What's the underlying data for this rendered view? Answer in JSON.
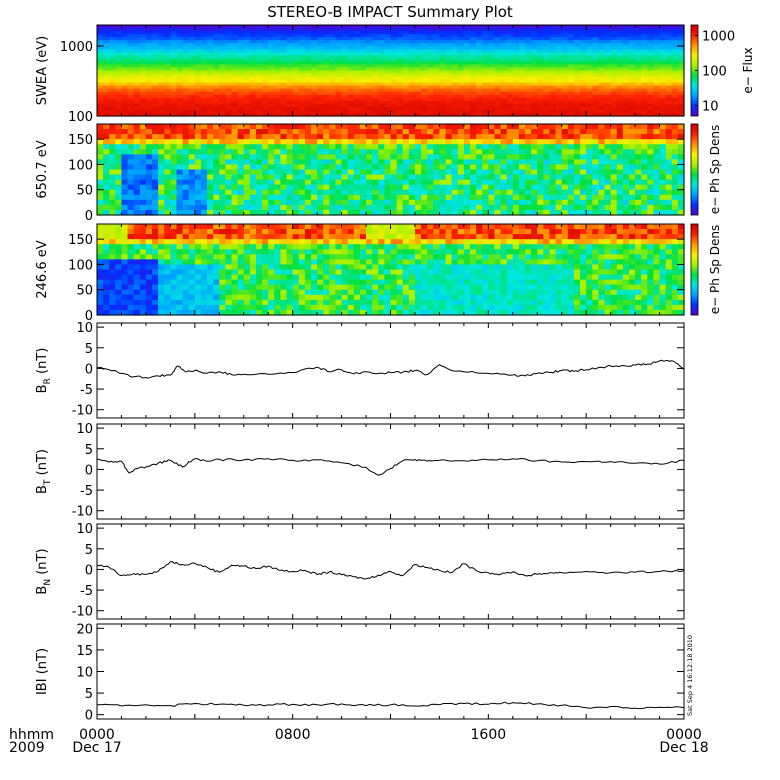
{
  "title": "STEREO-B IMPACT Summary Plot",
  "footer": {
    "time_label": "hhmm",
    "year_label": "2009",
    "stamp": "Sat Sep  4 16:12:18 2010"
  },
  "colors": {
    "colormap": [
      "#5a00c8",
      "#0030ff",
      "#00a0ff",
      "#00e8e0",
      "#00e040",
      "#a8f000",
      "#f8f000",
      "#ff9000",
      "#ff2000",
      "#c80000"
    ],
    "line": "#000000"
  },
  "chart_data": [
    {
      "type": "heatmap",
      "ylabel": "SWEA (eV)",
      "yscale": "log",
      "ylim": [
        100,
        2000
      ],
      "yticks": [
        "1000",
        "100"
      ],
      "colorbar": {
        "label": "e− Flux",
        "scale": "log",
        "ticks": [
          "1000",
          "100",
          "10"
        ]
      },
      "description_rows_low_to_high_energy": "flux highest at low energy (red), falling to blue above ~1500 eV",
      "energy_levels_eV": [
        100,
        150,
        200,
        300,
        450,
        600,
        900,
        1300,
        2000
      ],
      "flux_by_energy": [
        1500,
        1300,
        900,
        300,
        120,
        60,
        25,
        12,
        5
      ]
    },
    {
      "type": "heatmap",
      "ylabel": "650.7  eV",
      "ylim": [
        0,
        180
      ],
      "yticks": [
        "150",
        "100",
        "50",
        "0"
      ],
      "colorbar": {
        "label": "e− Ph Sp Dens"
      }
    },
    {
      "type": "heatmap",
      "ylabel": "246.6  eV",
      "ylim": [
        0,
        180
      ],
      "yticks": [
        "150",
        "100",
        "50",
        "0"
      ],
      "colorbar": {
        "label": "e− Ph Sp Dens"
      }
    },
    {
      "type": "line",
      "ylabel_main": "B",
      "ylabel_sub": "R",
      "ylabel_unit": " (nT)",
      "ylim": [
        -12,
        11
      ],
      "yticks": [
        "10",
        "5",
        "0",
        "-5",
        "-10"
      ],
      "x_hours": [
        0,
        0.5,
        1,
        1.5,
        2,
        2.5,
        3,
        3.3,
        3.6,
        4,
        4.5,
        5,
        5.5,
        6,
        7,
        8,
        9,
        9.5,
        10,
        10.5,
        11,
        11.5,
        12,
        12.5,
        13,
        13.5,
        14,
        14.5,
        15,
        16,
        17,
        17.5,
        18,
        18.5,
        19,
        19.5,
        20,
        20.5,
        21,
        21.5,
        22,
        22.5,
        23,
        23.5,
        24
      ],
      "y": [
        0.2,
        -0.3,
        -1.2,
        -2.0,
        -2.2,
        -1.8,
        -1.6,
        0.6,
        -0.8,
        -0.5,
        -1.2,
        -0.8,
        -1.5,
        -1.4,
        -1.4,
        -1.0,
        0.3,
        -0.8,
        -0.3,
        -1.3,
        -0.8,
        -1.2,
        -1.0,
        -0.9,
        -0.5,
        -1.5,
        0.9,
        -0.5,
        -0.8,
        -1.2,
        -1.6,
        -1.8,
        -1.2,
        -1.0,
        -0.5,
        -0.7,
        -0.3,
        0.2,
        0.6,
        0.7,
        0.8,
        1.0,
        1.8,
        1.9,
        -0.2
      ]
    },
    {
      "type": "line",
      "ylabel_main": "B",
      "ylabel_sub": "T",
      "ylabel_unit": " (nT)",
      "ylim": [
        -12,
        11
      ],
      "yticks": [
        "10",
        "5",
        "0",
        "-5",
        "-10"
      ],
      "x_hours": [
        0,
        0.5,
        1,
        1.3,
        1.6,
        2,
        2.5,
        3,
        3.5,
        4,
        4.5,
        5,
        6,
        7,
        8,
        9,
        10,
        11,
        11.5,
        12,
        12.5,
        13,
        13.5,
        14,
        15,
        16,
        17,
        18,
        19,
        20,
        21,
        22,
        23,
        24
      ],
      "y": [
        2.6,
        1.8,
        2.0,
        -0.8,
        0.2,
        0.6,
        1.5,
        2.2,
        0.6,
        2.6,
        2.0,
        2.4,
        2.3,
        2.6,
        2.2,
        2.3,
        1.6,
        0.5,
        -1.4,
        0.2,
        2.1,
        2.4,
        2.0,
        2.2,
        2.1,
        2.3,
        2.6,
        2.1,
        1.8,
        1.9,
        1.9,
        1.5,
        1.3,
        2.2
      ]
    },
    {
      "type": "line",
      "ylabel_main": "B",
      "ylabel_sub": "N",
      "ylabel_unit": " (nT)",
      "ylim": [
        -12,
        11
      ],
      "yticks": [
        "10",
        "5",
        "0",
        "-5",
        "-10"
      ],
      "x_hours": [
        0,
        0.5,
        1,
        1.5,
        2,
        2.5,
        3,
        3.5,
        4,
        4.5,
        5,
        5.5,
        6,
        6.5,
        7,
        7.5,
        8,
        8.5,
        9,
        9.5,
        10,
        10.5,
        11,
        11.5,
        12,
        12.5,
        13,
        13.5,
        14,
        14.5,
        15,
        15.5,
        16,
        16.5,
        17,
        17.5,
        18,
        18.5,
        19,
        20,
        21,
        22,
        23,
        24
      ],
      "y": [
        1.1,
        0.5,
        -1.5,
        -1.0,
        -1.2,
        -0.5,
        1.9,
        1.2,
        1.5,
        0.5,
        -0.7,
        1.0,
        0.8,
        0.2,
        0.8,
        -0.2,
        -0.5,
        -0.2,
        -1.2,
        -0.6,
        -1.3,
        -1.8,
        -2.3,
        -1.4,
        -0.5,
        -1.5,
        1.2,
        0.5,
        -0.2,
        -0.8,
        1.4,
        -0.3,
        -0.8,
        -1.2,
        -0.6,
        -1.5,
        -1.2,
        -0.8,
        -0.8,
        -0.5,
        -0.8,
        -0.7,
        -0.5,
        -0.3
      ]
    },
    {
      "type": "line",
      "ylabel_main": "IBI",
      "ylabel_sub": "",
      "ylabel_unit": " (nT)",
      "ylim": [
        -1,
        21
      ],
      "yticks": [
        "20",
        "15",
        "10",
        "5",
        "0"
      ],
      "x_hours": [
        0,
        1,
        2,
        3,
        4,
        5,
        6,
        7,
        8,
        9,
        10,
        11,
        12,
        13,
        14,
        15,
        16,
        17,
        18,
        19,
        20,
        21,
        22,
        23,
        24
      ],
      "y": [
        2.3,
        2.0,
        2.3,
        2.1,
        2.6,
        2.4,
        2.2,
        2.3,
        2.4,
        2.3,
        2.5,
        2.1,
        2.3,
        2.0,
        2.3,
        2.6,
        2.4,
        2.8,
        2.5,
        2.2,
        1.6,
        1.9,
        1.5,
        1.7,
        1.6
      ]
    }
  ],
  "x_axis": {
    "range_hours": [
      0,
      24
    ],
    "ticks": [
      {
        "hours": 0,
        "label": "0000",
        "sub": "Dec 17"
      },
      {
        "hours": 8,
        "label": "0800",
        "sub": ""
      },
      {
        "hours": 16,
        "label": "1600",
        "sub": ""
      },
      {
        "hours": 24,
        "label": "0000",
        "sub": "Dec 18"
      }
    ]
  }
}
